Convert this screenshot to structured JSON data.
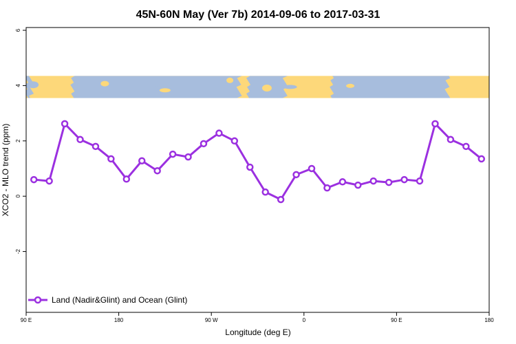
{
  "chart_data": {
    "type": "line",
    "title": "45N-60N May (Ver 7b)   2014-09-06 to 2017-03-31",
    "xlabel": "Longitude (deg E)",
    "ylabel": "XCO2 - MLO trend (ppm)",
    "x_ticks": [
      {
        "value": 0,
        "label": "90 E"
      },
      {
        "value": 90,
        "label": "180"
      },
      {
        "value": 180,
        "label": "90 W"
      },
      {
        "value": 270,
        "label": "0"
      },
      {
        "value": 360,
        "label": "90 E"
      },
      {
        "value": 450,
        "label": "180"
      }
    ],
    "y_ticks": [
      {
        "value": -2,
        "label": "-2"
      },
      {
        "value": 0,
        "label": "0"
      },
      {
        "value": 2,
        "label": "2"
      },
      {
        "value": 4,
        "label": "4"
      },
      {
        "value": 6,
        "label": "6"
      }
    ],
    "xlim": [
      0,
      450
    ],
    "ylim": [
      -4.2,
      6.1
    ],
    "grid": false,
    "legend": "bottom-left",
    "map_strip": {
      "y_range": [
        3.55,
        4.35
      ],
      "land_color": "#fdd87a",
      "ocean_color": "#a7bddd"
    },
    "series": [
      {
        "name": "Land (Nadir&Glint) and Ocean (Glint)",
        "color": "#9b30e0",
        "x": [
          7.5,
          22.5,
          37.5,
          52.5,
          67.5,
          82.5,
          97.5,
          112.5,
          127.5,
          142.5,
          157.5,
          172.5,
          187.5,
          202.5,
          217.5,
          232.5,
          247.5,
          262.5,
          277.5,
          292.5,
          307.5,
          322.5,
          337.5,
          352.5,
          367.5,
          382.5,
          397.5,
          412.5,
          427.5,
          442.5
        ],
        "values": [
          0.6,
          0.55,
          2.62,
          2.05,
          1.8,
          1.35,
          0.62,
          1.28,
          0.92,
          1.52,
          1.42,
          1.9,
          2.28,
          2.0,
          1.05,
          0.15,
          -0.12,
          0.78,
          1.0,
          0.3,
          0.52,
          0.4,
          0.55,
          0.5,
          0.6,
          0.55,
          2.62,
          2.05,
          1.8,
          1.35
        ]
      }
    ]
  }
}
